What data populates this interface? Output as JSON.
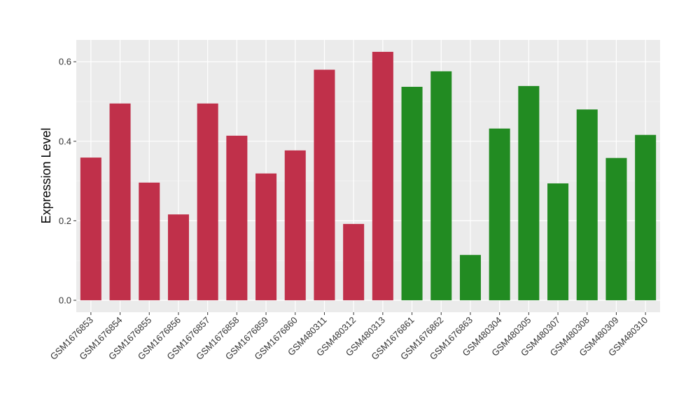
{
  "chart_data": {
    "type": "bar",
    "title": "",
    "xlabel": "",
    "ylabel": "Expression Level",
    "ylim": [
      -0.03,
      0.655
    ],
    "yticks": [
      0.0,
      0.2,
      0.4,
      0.6
    ],
    "ytick_labels": [
      "0.0",
      "0.2",
      "0.4",
      "0.6"
    ],
    "grid": true,
    "legend": "none",
    "categories": [
      "GSM1676853",
      "GSM1676854",
      "GSM1676855",
      "GSM1676856",
      "GSM1676857",
      "GSM1676858",
      "GSM1676859",
      "GSM1676860",
      "GSM480311",
      "GSM480312",
      "GSM480313",
      "GSM1676861",
      "GSM1676862",
      "GSM1676863",
      "GSM480304",
      "GSM480305",
      "GSM480307",
      "GSM480308",
      "GSM480309",
      "GSM480310"
    ],
    "values": [
      0.359,
      0.495,
      0.296,
      0.216,
      0.495,
      0.414,
      0.319,
      0.377,
      0.58,
      0.192,
      0.625,
      0.537,
      0.576,
      0.114,
      0.432,
      0.539,
      0.294,
      0.48,
      0.358,
      0.416
    ],
    "groups": [
      "red",
      "red",
      "red",
      "red",
      "red",
      "red",
      "red",
      "red",
      "red",
      "red",
      "red",
      "green",
      "green",
      "green",
      "green",
      "green",
      "green",
      "green",
      "green",
      "green"
    ],
    "colors": {
      "red": "#C0304A",
      "green": "#228B22",
      "panel": "#EBEBEB",
      "grid_major": "#FFFFFF",
      "grid_minor": "#F5F5F5"
    }
  }
}
